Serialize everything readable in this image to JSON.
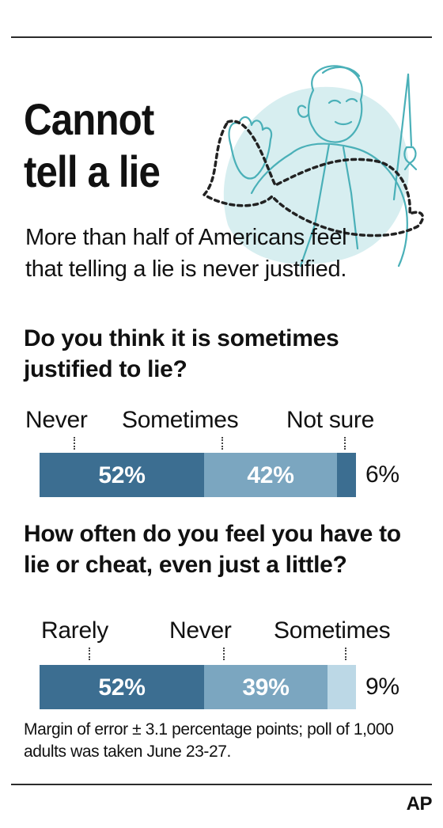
{
  "title": "Cannot tell a lie",
  "deck": "More than half of Americans feel that telling a lie is never justified.",
  "note": "Margin of error ± 3.1 percentage points; poll of 1,000 adults was taken June 23-27.",
  "credit": "AP",
  "colors": {
    "dark": "#3c6e91",
    "mid": "#7ba6c0",
    "light": "#bcd8e6",
    "illustration": "#4ab0b8",
    "illustration_fill": "#d7eef0"
  },
  "chart_data": [
    {
      "type": "bar",
      "stacked": true,
      "orientation": "horizontal",
      "title": "Do you think it is sometimes justified to lie?",
      "categories": [
        "Never",
        "Sometimes",
        "Not sure"
      ],
      "values": [
        52,
        42,
        6
      ],
      "value_labels": [
        "52%",
        "42%",
        "6%"
      ],
      "colors": [
        "#3c6e91",
        "#7ba6c0",
        "#3c6e91"
      ]
    },
    {
      "type": "bar",
      "stacked": true,
      "orientation": "horizontal",
      "title": "How often do you feel you have to lie or cheat, even just a little?",
      "categories": [
        "Rarely",
        "Never",
        "Sometimes"
      ],
      "values": [
        52,
        39,
        9
      ],
      "value_labels": [
        "52%",
        "39%",
        "9%"
      ],
      "colors": [
        "#3c6e91",
        "#7ba6c0",
        "#bcd8e6"
      ]
    }
  ]
}
